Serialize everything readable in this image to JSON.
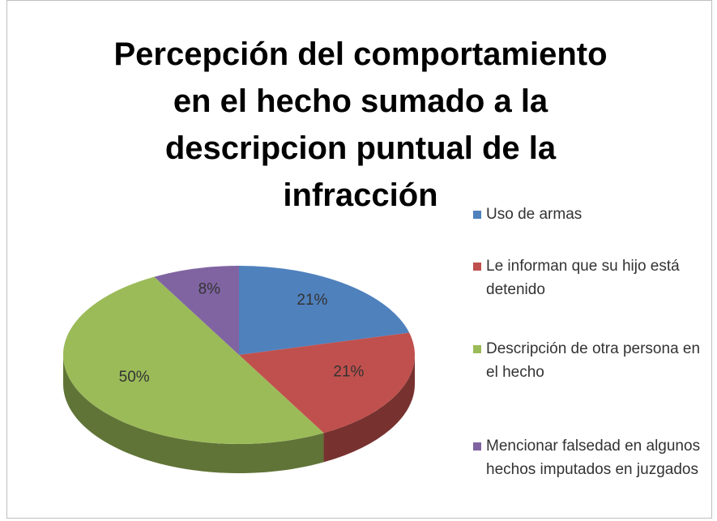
{
  "chart_data": {
    "type": "pie",
    "title": "Percepción del comportamiento en el hecho sumado a la descripcion puntual de la infracción",
    "categories": [
      "Uso de armas",
      "Le informan que su hijo está detenido",
      "Descripción de otra persona en el hecho",
      "Mencionar falsedad en algunos hechos imputados en juzgados"
    ],
    "values": [
      21,
      21,
      50,
      8
    ],
    "value_labels": [
      "21%",
      "21%",
      "50%",
      "8%"
    ],
    "colors": [
      "#4f81bd",
      "#c0504d",
      "#9bbb59",
      "#8064a2"
    ],
    "legend": "right"
  }
}
